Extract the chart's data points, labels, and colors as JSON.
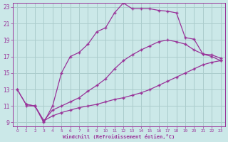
{
  "bg_color": "#cbe8e8",
  "grid_color": "#aacccc",
  "line_color": "#993399",
  "marker": "+",
  "xlabel": "Windchill (Refroidissement éolien,°C)",
  "xlabel_color": "#993399",
  "tick_color": "#993399",
  "xlim": [
    -0.5,
    23.5
  ],
  "ylim": [
    8.5,
    23.5
  ],
  "yticks": [
    9,
    11,
    13,
    15,
    17,
    19,
    21,
    23
  ],
  "xticks": [
    0,
    1,
    2,
    3,
    4,
    5,
    6,
    7,
    8,
    9,
    10,
    11,
    12,
    13,
    14,
    15,
    16,
    17,
    18,
    19,
    20,
    21,
    22,
    23
  ],
  "curve_top_x": [
    1,
    2,
    3,
    4,
    5,
    6,
    7,
    8,
    9,
    10,
    11,
    12,
    13,
    14,
    15,
    16,
    17,
    18,
    19,
    20,
    21,
    22,
    23
  ],
  "curve_top_y": [
    11,
    11,
    9,
    11,
    15,
    17,
    17.5,
    18.5,
    20,
    20.5,
    22.3,
    23.5,
    22.8,
    22.8,
    22.8,
    22.6,
    22.5,
    22.3,
    19.3,
    19.1,
    17.3,
    17.0,
    16.5
  ],
  "curve_mid_x": [
    0,
    1,
    2,
    3,
    4,
    5,
    6,
    7,
    8,
    9,
    10,
    11,
    12,
    13,
    14,
    15,
    16,
    17,
    18,
    19,
    20,
    21,
    22,
    23
  ],
  "curve_mid_y": [
    13,
    11.2,
    11,
    9.2,
    10.5,
    11.0,
    11.5,
    12.0,
    12.8,
    13.5,
    14.3,
    15.5,
    16.5,
    17.2,
    17.8,
    18.3,
    18.8,
    19.0,
    18.8,
    18.5,
    17.8,
    17.3,
    17.2,
    16.8
  ],
  "curve_bot_x": [
    0,
    1,
    2,
    3,
    4,
    5,
    6,
    7,
    8,
    9,
    10,
    11,
    12,
    13,
    14,
    15,
    16,
    17,
    18,
    19,
    20,
    21,
    22,
    23
  ],
  "curve_bot_y": [
    13,
    11.2,
    11,
    9.2,
    9.8,
    10.2,
    10.5,
    10.8,
    11.0,
    11.2,
    11.5,
    11.8,
    12.0,
    12.3,
    12.6,
    13.0,
    13.5,
    14.0,
    14.5,
    15.0,
    15.5,
    16.0,
    16.3,
    16.5
  ]
}
